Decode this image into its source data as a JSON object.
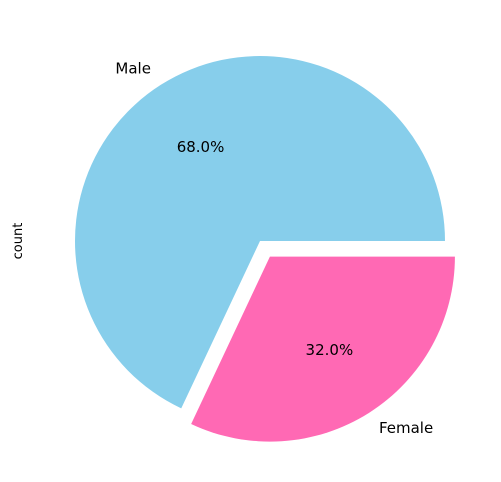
{
  "chart_data": {
    "type": "pie",
    "ylabel": "count",
    "slices": [
      {
        "label": "Male",
        "percent": 68.0,
        "percent_label": "68.0%",
        "color": "#87CEEB",
        "explode": 0
      },
      {
        "label": "Female",
        "percent": 32.0,
        "percent_label": "32.0%",
        "color": "#FF69B4",
        "explode": 0.1
      }
    ]
  }
}
